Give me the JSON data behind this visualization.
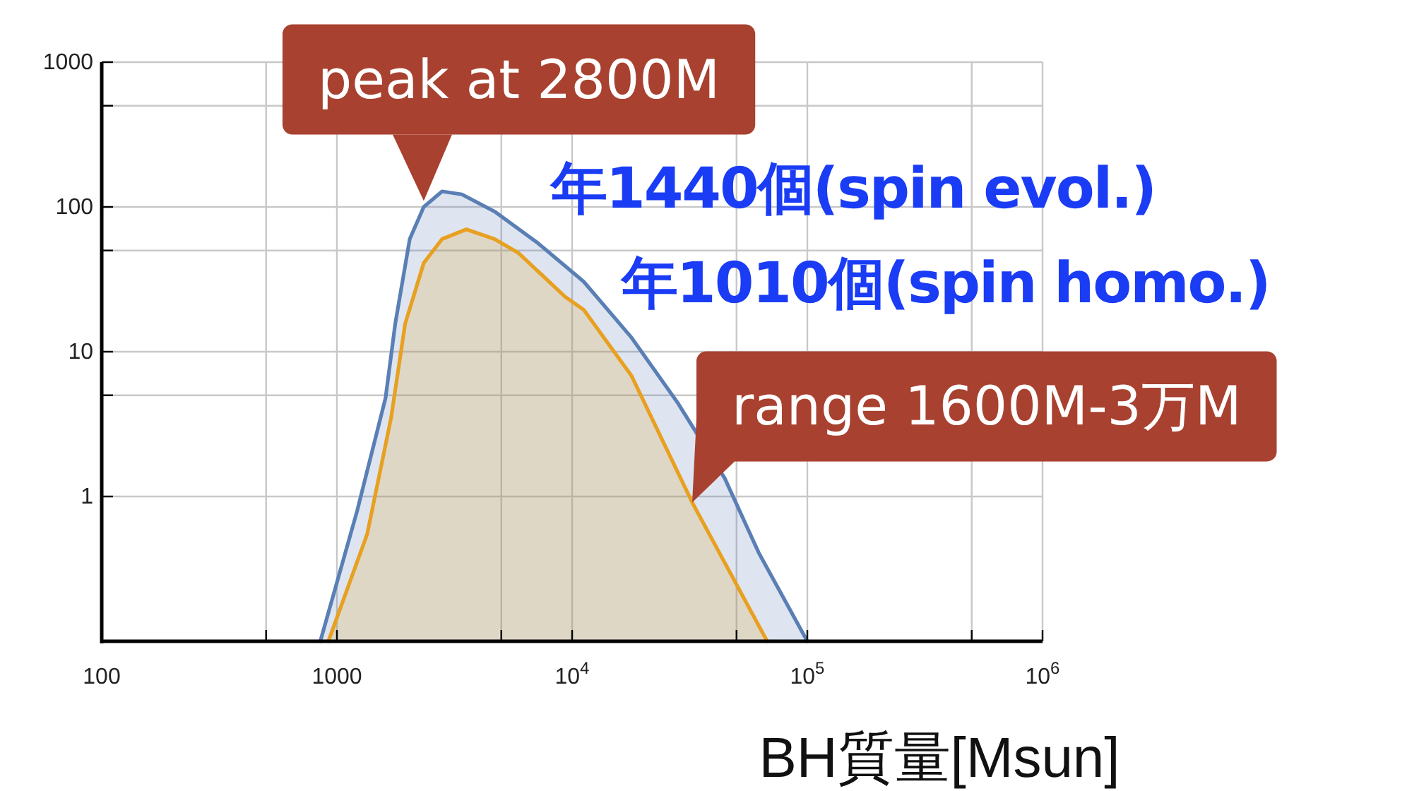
{
  "chart_data": {
    "type": "area",
    "xlabel": "BH質量[Msun]",
    "log": "xy",
    "grid": true,
    "xlim": [
      100,
      1000000
    ],
    "ylim": [
      0.1,
      1000
    ],
    "xticks": [
      100,
      {
        "value": 500,
        "label": null
      },
      1000,
      {
        "value": 5000,
        "label": null
      },
      {
        "value": 10000,
        "label": "10$^{4}$"
      },
      {
        "value": 50000,
        "label": null
      },
      {
        "value": 100000,
        "label": "10$^{5}$"
      },
      {
        "value": 500000,
        "label": null
      },
      {
        "value": 1000000,
        "label": "10$^{6}$"
      }
    ],
    "yticks": [
      {
        "value": 0.1,
        "label": null
      },
      1,
      {
        "value": 5,
        "label": null
      },
      10,
      {
        "value": 50,
        "label": null
      },
      100,
      {
        "value": 500,
        "label": null
      },
      1000
    ],
    "series": [
      {
        "color": "#5a7fb5",
        "x": [
          850,
          1220,
          1610,
          1770,
          2040,
          2340,
          2800,
          3400,
          4680,
          7080,
          11200,
          17900,
          28200,
          44500,
          62100,
          100000
        ],
        "values": [
          0.1,
          0.8,
          4.8,
          15.6,
          60,
          100,
          128,
          122,
          93,
          57,
          30.5,
          12.5,
          4.4,
          1.34,
          0.41,
          0.1
        ]
      },
      {
        "color": "#e8a020",
        "x": [
          920,
          1345,
          1700,
          1950,
          2340,
          2800,
          3550,
          4680,
          5920,
          9330,
          11200,
          17900,
          32400,
          44500,
          67500
        ],
        "values": [
          0.1,
          0.55,
          3.5,
          15.6,
          41,
          60,
          70,
          60,
          48,
          24,
          19.5,
          6.8,
          0.91,
          0.35,
          0.1
        ]
      }
    ],
    "annotations": [
      {
        "text": "peak at 2800M",
        "x": 2340,
        "y": 110
      },
      "年1440個(spin evol.)",
      "年1010個(spin homo.)",
      {
        "text": "range 1600M-3万M",
        "x": 32400,
        "y": 0.91
      }
    ]
  }
}
